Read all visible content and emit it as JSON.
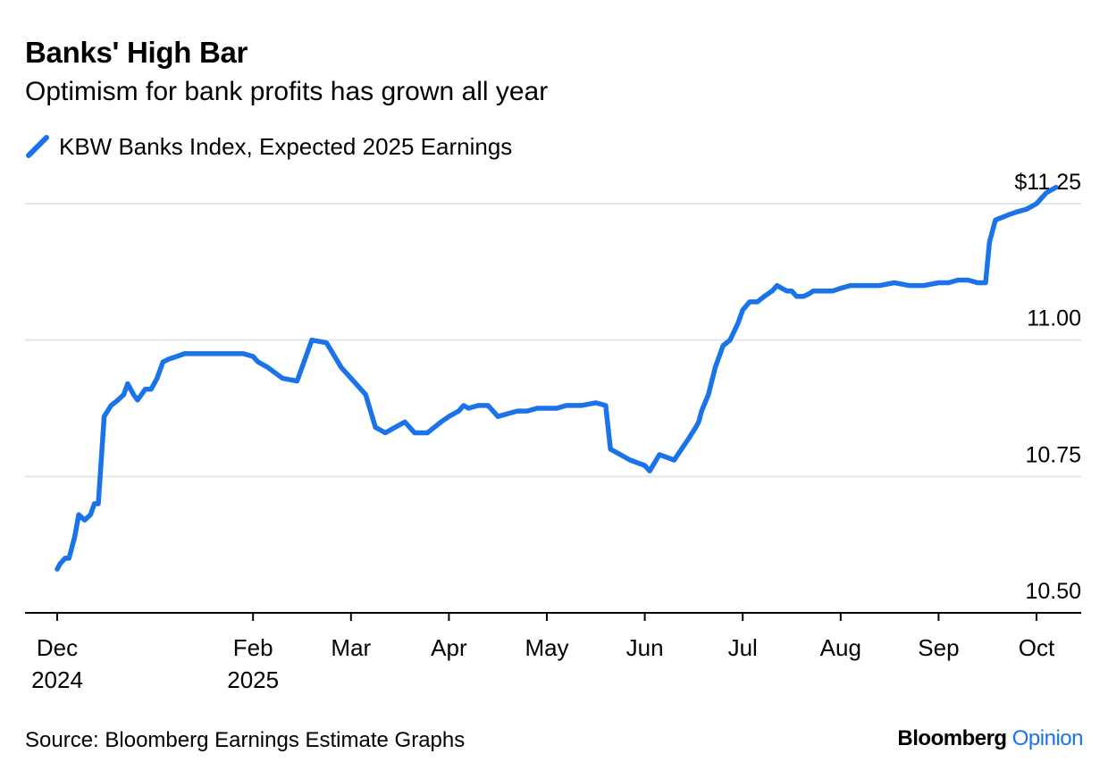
{
  "header": {
    "title": "Banks' High Bar",
    "subtitle": "Optimism for bank profits has grown all year"
  },
  "footer": {
    "source": "Source: Bloomberg Earnings Estimate Graphs",
    "brand_primary": "Bloomberg",
    "brand_secondary": "Opinion"
  },
  "colors": {
    "line": "#1a73e8",
    "grid": "#e6e6e6",
    "axis": "#000000"
  },
  "chart_data": {
    "type": "line",
    "title": "Banks' High Bar",
    "subtitle": "Optimism for bank profits has grown all year",
    "xlabel": "",
    "ylabel": "",
    "ylim": [
      10.5,
      11.25
    ],
    "grid": true,
    "legend_position": "top-left",
    "y_ticks": [
      {
        "value": 11.25,
        "label": "$11.25"
      },
      {
        "value": 11.0,
        "label": "11.00"
      },
      {
        "value": 10.75,
        "label": "10.75"
      },
      {
        "value": 10.5,
        "label": "10.50"
      }
    ],
    "x_ticks": [
      {
        "month": 0,
        "label": "Dec",
        "sublabel": "2024"
      },
      {
        "month": 2,
        "label": "Feb",
        "sublabel": "2025"
      },
      {
        "month": 3,
        "label": "Mar",
        "sublabel": ""
      },
      {
        "month": 4,
        "label": "Apr",
        "sublabel": ""
      },
      {
        "month": 5,
        "label": "May",
        "sublabel": ""
      },
      {
        "month": 6,
        "label": "Jun",
        "sublabel": ""
      },
      {
        "month": 7,
        "label": "Jul",
        "sublabel": ""
      },
      {
        "month": 8,
        "label": "Aug",
        "sublabel": ""
      },
      {
        "month": 9,
        "label": "Sep",
        "sublabel": ""
      },
      {
        "month": 10,
        "label": "Oct",
        "sublabel": ""
      }
    ],
    "x_units": "months since Dec 1, 2024",
    "series": [
      {
        "name": "KBW Banks Index, Expected 2025 Earnings",
        "x": [
          0,
          0.03,
          0.08,
          0.12,
          0.18,
          0.22,
          0.28,
          0.34,
          0.38,
          0.42,
          0.48,
          0.55,
          0.62,
          0.68,
          0.72,
          0.78,
          0.82,
          0.9,
          0.96,
          1.02,
          1.08,
          1.14,
          1.22,
          1.3,
          1.42,
          1.55,
          1.7,
          1.9,
          2.0,
          2.05,
          2.15,
          2.3,
          2.45,
          2.6,
          2.75,
          2.9,
          3.05,
          3.15,
          3.25,
          3.35,
          3.45,
          3.55,
          3.65,
          3.72,
          3.78,
          3.85,
          3.92,
          4.0,
          4.05,
          4.1,
          4.15,
          4.2,
          4.3,
          4.4,
          4.5,
          4.6,
          4.7,
          4.8,
          4.9,
          5.0,
          5.1,
          5.2,
          5.35,
          5.5,
          5.6,
          5.65,
          5.75,
          5.85,
          6.0,
          6.05,
          6.15,
          6.3,
          6.45,
          6.52,
          6.55,
          6.58,
          6.65,
          6.72,
          6.8,
          6.87,
          6.95,
          7.0,
          7.07,
          7.15,
          7.22,
          7.3,
          7.35,
          7.4,
          7.45,
          7.5,
          7.55,
          7.62,
          7.68,
          7.72,
          7.85,
          7.92,
          8.0,
          8.1,
          8.25,
          8.4,
          8.55,
          8.7,
          8.85,
          9.0,
          9.1,
          9.2,
          9.3,
          9.4,
          9.48,
          9.52,
          9.58,
          9.65,
          9.72,
          9.8,
          9.9,
          9.95,
          10.0,
          10.05,
          10.1,
          10.15,
          10.2
        ],
        "values": [
          10.58,
          10.59,
          10.6,
          10.6,
          10.64,
          10.68,
          10.67,
          10.68,
          10.7,
          10.7,
          10.86,
          10.88,
          10.89,
          10.9,
          10.92,
          10.9,
          10.89,
          10.91,
          10.91,
          10.93,
          10.96,
          10.965,
          10.97,
          10.975,
          10.975,
          10.975,
          10.975,
          10.975,
          10.97,
          10.96,
          10.95,
          10.93,
          10.925,
          11.0,
          10.995,
          10.95,
          10.92,
          10.9,
          10.84,
          10.83,
          10.84,
          10.85,
          10.83,
          10.83,
          10.83,
          10.84,
          10.85,
          10.86,
          10.865,
          10.87,
          10.88,
          10.875,
          10.88,
          10.88,
          10.86,
          10.865,
          10.87,
          10.87,
          10.875,
          10.875,
          10.875,
          10.88,
          10.88,
          10.885,
          10.88,
          10.8,
          10.79,
          10.78,
          10.77,
          10.76,
          10.79,
          10.78,
          10.82,
          10.84,
          10.85,
          10.87,
          10.9,
          10.95,
          10.99,
          11.0,
          11.03,
          11.055,
          11.07,
          11.07,
          11.08,
          11.09,
          11.1,
          11.095,
          11.09,
          11.09,
          11.08,
          11.08,
          11.085,
          11.09,
          11.09,
          11.09,
          11.095,
          11.1,
          11.1,
          11.1,
          11.105,
          11.1,
          11.1,
          11.105,
          11.105,
          11.11,
          11.11,
          11.105,
          11.105,
          11.18,
          11.22,
          11.225,
          11.23,
          11.235,
          11.24,
          11.245,
          11.25,
          11.26,
          11.27,
          11.275,
          11.28
        ]
      }
    ]
  }
}
